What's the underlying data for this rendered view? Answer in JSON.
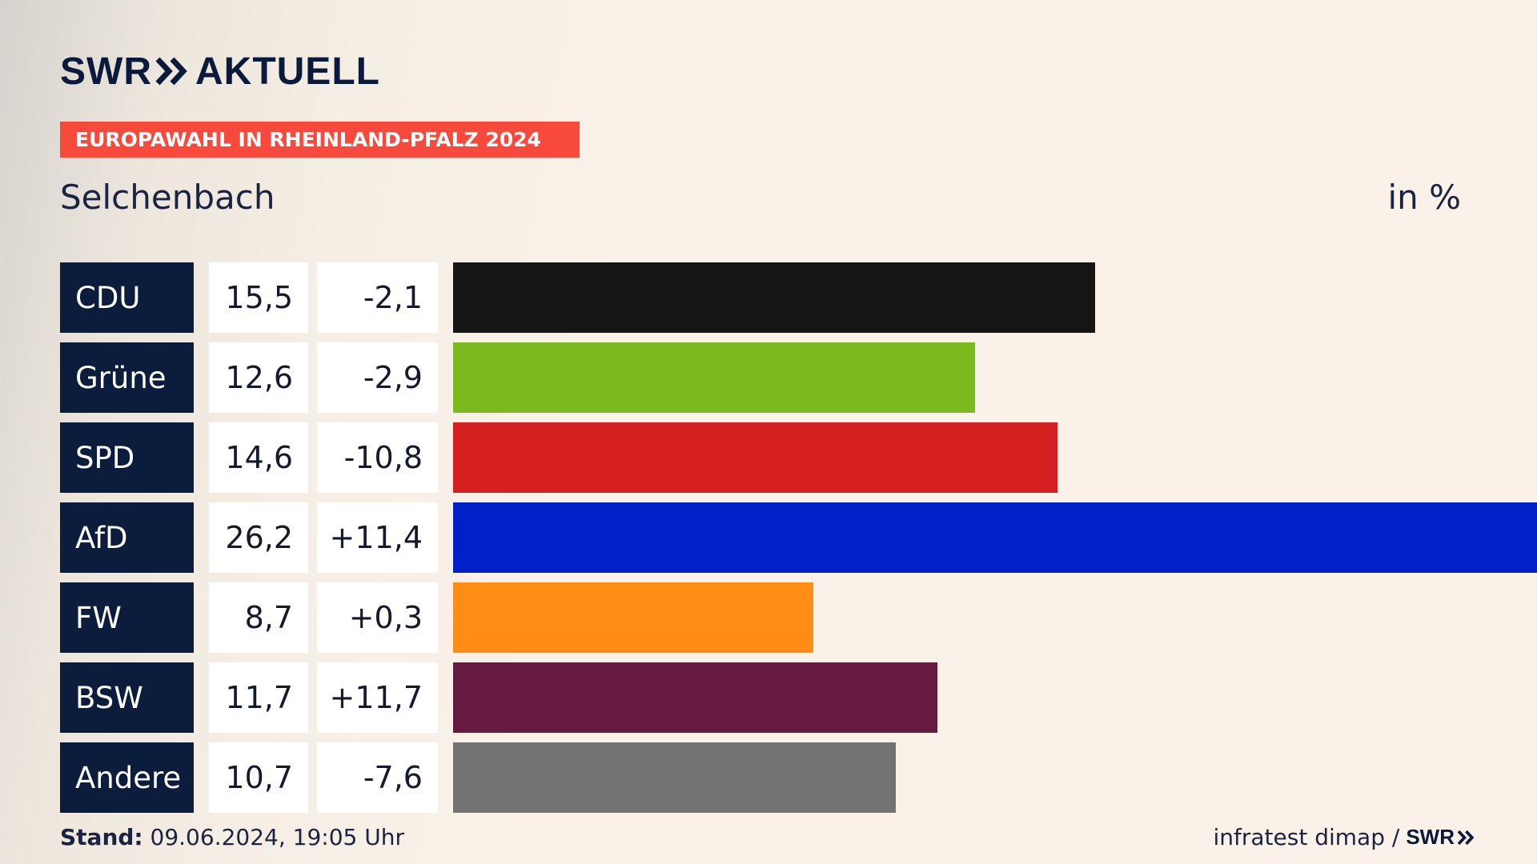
{
  "header": {
    "logo_text": "SWR",
    "logo_suffix": "AKTUELL",
    "banner": "EUROPAWAHL IN RHEINLAND-PFALZ 2024",
    "place": "Selchenbach",
    "unit": "in %"
  },
  "chart_data": {
    "type": "bar",
    "orientation": "horizontal",
    "categories": [
      "CDU",
      "Grüne",
      "SPD",
      "AfD",
      "FW",
      "BSW",
      "Andere"
    ],
    "values": [
      15.5,
      12.6,
      14.6,
      26.2,
      8.7,
      11.7,
      10.7
    ],
    "value_labels": [
      "15,5",
      "12,6",
      "14,6",
      "26,2",
      "8,7",
      "11,7",
      "10,7"
    ],
    "diff_labels": [
      "-2,1",
      "-2,9",
      "-10,8",
      "+11,4",
      "+0,3",
      "+11,7",
      "-7,6"
    ],
    "colors": [
      "#151515",
      "#7aba1e",
      "#d61f1f",
      "#0020c8",
      "#ff8c14",
      "#661a3f",
      "#737373"
    ],
    "xlim": [
      0,
      26.2
    ]
  },
  "footer": {
    "stand_label": "Stand:",
    "stand_value": "09.06.2024, 19:05 Uhr",
    "source": "infratest dimap /",
    "source_logo": "SWR"
  }
}
